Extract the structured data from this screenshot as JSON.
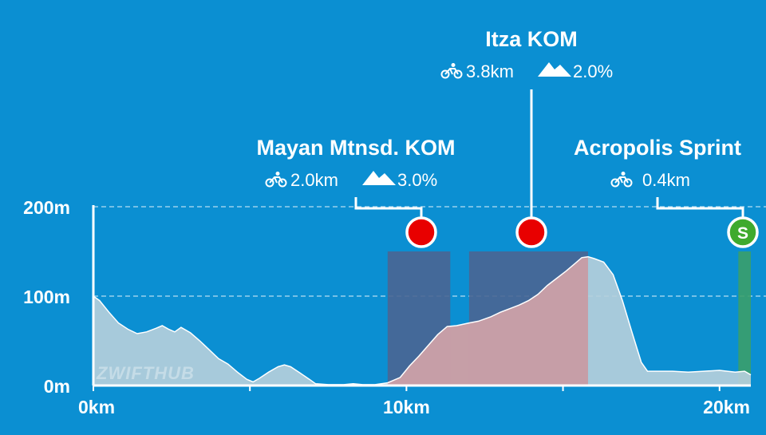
{
  "chart_data": {
    "type": "area",
    "x_unit": "km",
    "y_unit": "m",
    "xlim": [
      0,
      21
    ],
    "ylim": [
      0,
      200
    ],
    "y_ticks": [
      {
        "value": 0,
        "label": "0m"
      },
      {
        "value": 100,
        "label": "100m"
      },
      {
        "value": 200,
        "label": "200m"
      }
    ],
    "x_ticks": [
      {
        "value": 0,
        "label": "0km"
      },
      {
        "value": 10,
        "label": "10km"
      },
      {
        "value": 20,
        "label": "20km"
      }
    ],
    "x_minor_ticks": [
      5,
      15
    ],
    "grid": "dashed horizontal at 100m and 200m",
    "watermark": "ZWIFTHUB",
    "colors": {
      "background": "#0b8fd2",
      "profile_fill": "#b5cfdb",
      "climb_fill": "#c79ca4",
      "segment_box": "#4a6592",
      "kom_marker": "#e80000",
      "sprint_marker": "#3faa2e",
      "sprint_band": "#3a9e6a"
    },
    "profile": [
      [
        0,
        100
      ],
      [
        0.2,
        95
      ],
      [
        0.5,
        82
      ],
      [
        0.8,
        70
      ],
      [
        1.1,
        63
      ],
      [
        1.4,
        58
      ],
      [
        1.7,
        60
      ],
      [
        2.0,
        64
      ],
      [
        2.2,
        67
      ],
      [
        2.4,
        63
      ],
      [
        2.6,
        60
      ],
      [
        2.8,
        65
      ],
      [
        3.1,
        59
      ],
      [
        3.4,
        50
      ],
      [
        3.7,
        40
      ],
      [
        4.0,
        30
      ],
      [
        4.3,
        24
      ],
      [
        4.6,
        15
      ],
      [
        4.9,
        7
      ],
      [
        5.1,
        4
      ],
      [
        5.3,
        8
      ],
      [
        5.6,
        15
      ],
      [
        5.9,
        21
      ],
      [
        6.1,
        23
      ],
      [
        6.3,
        21
      ],
      [
        6.6,
        14
      ],
      [
        6.9,
        7
      ],
      [
        7.1,
        2
      ],
      [
        7.5,
        1
      ],
      [
        8.0,
        1
      ],
      [
        8.3,
        2
      ],
      [
        8.6,
        1
      ],
      [
        9.0,
        1
      ],
      [
        9.4,
        3
      ],
      [
        9.8,
        9
      ],
      [
        10.1,
        22
      ],
      [
        10.4,
        33
      ],
      [
        10.7,
        45
      ],
      [
        11.0,
        57
      ],
      [
        11.3,
        66
      ],
      [
        11.6,
        67
      ],
      [
        12.0,
        70
      ],
      [
        12.3,
        72
      ],
      [
        12.7,
        77
      ],
      [
        13.0,
        82
      ],
      [
        13.3,
        86
      ],
      [
        13.6,
        90
      ],
      [
        13.9,
        95
      ],
      [
        14.2,
        102
      ],
      [
        14.5,
        112
      ],
      [
        14.8,
        120
      ],
      [
        15.1,
        128
      ],
      [
        15.4,
        137
      ],
      [
        15.6,
        143
      ],
      [
        15.8,
        144
      ],
      [
        16.0,
        142
      ],
      [
        16.3,
        138
      ],
      [
        16.6,
        124
      ],
      [
        16.9,
        95
      ],
      [
        17.2,
        60
      ],
      [
        17.5,
        26
      ],
      [
        17.7,
        16
      ],
      [
        18.0,
        16
      ],
      [
        18.5,
        16
      ],
      [
        19.0,
        15
      ],
      [
        19.5,
        16
      ],
      [
        20.0,
        17
      ],
      [
        20.5,
        15
      ],
      [
        20.8,
        16
      ],
      [
        21.0,
        12
      ]
    ],
    "segments": [
      {
        "name": "Mayan Mtnsd. KOM",
        "type": "kom",
        "start": 9.4,
        "end": 11.4,
        "distance": "2.0km",
        "gradient": "3.0%"
      },
      {
        "name": "Itza KOM",
        "type": "kom",
        "start": 12.0,
        "end": 15.8,
        "distance": "3.8km",
        "gradient": "2.0%"
      },
      {
        "name": "Acropolis Sprint",
        "type": "sprint",
        "start": 20.6,
        "end": 21.0,
        "distance": "0.4km",
        "sprint_marker_label": "S"
      }
    ]
  }
}
